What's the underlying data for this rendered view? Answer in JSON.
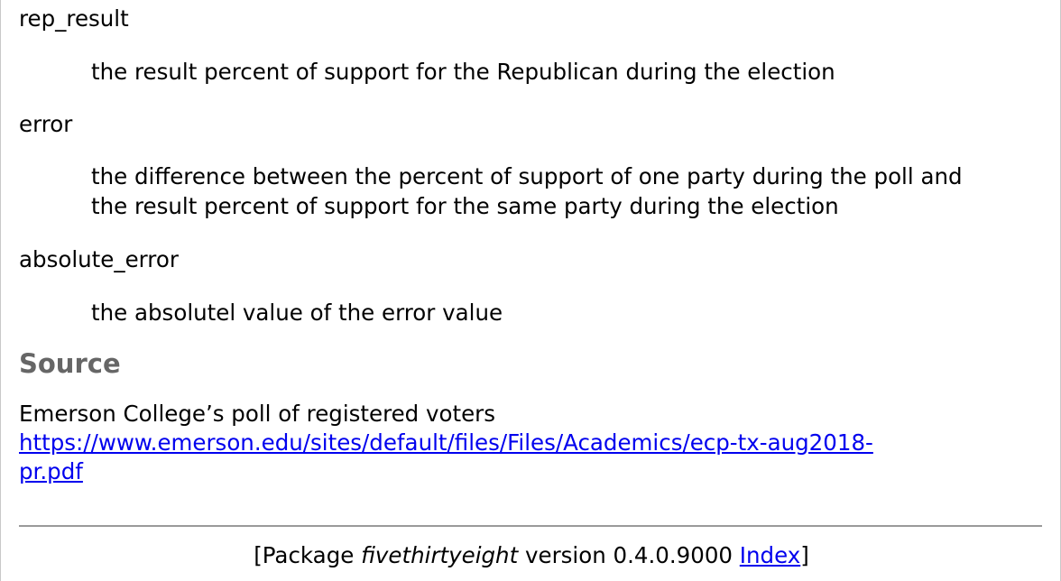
{
  "arguments": [
    {
      "name": "rep_result",
      "description": "the result percent of support for the Republican during the election"
    },
    {
      "name": "error",
      "description_line1": "the difference between the percent of support of one party during the poll and",
      "description_line2": "the result percent of support for the same party during the election"
    },
    {
      "name": "absolute_error",
      "description": "the absolutel value of the error value"
    }
  ],
  "source": {
    "heading": "Source",
    "text": "Emerson College’s poll of registered voters",
    "link_line1": "https://www.emerson.edu/sites/default/files/Files/Academics/ecp-tx-aug2018-",
    "link_line2": "pr.pdf"
  },
  "footer": {
    "open_bracket": "[Package ",
    "package_name": "fivethirtyeight",
    "version_text": " version 0.4.0.9000 ",
    "index_link": "Index",
    "close_bracket": "]"
  }
}
